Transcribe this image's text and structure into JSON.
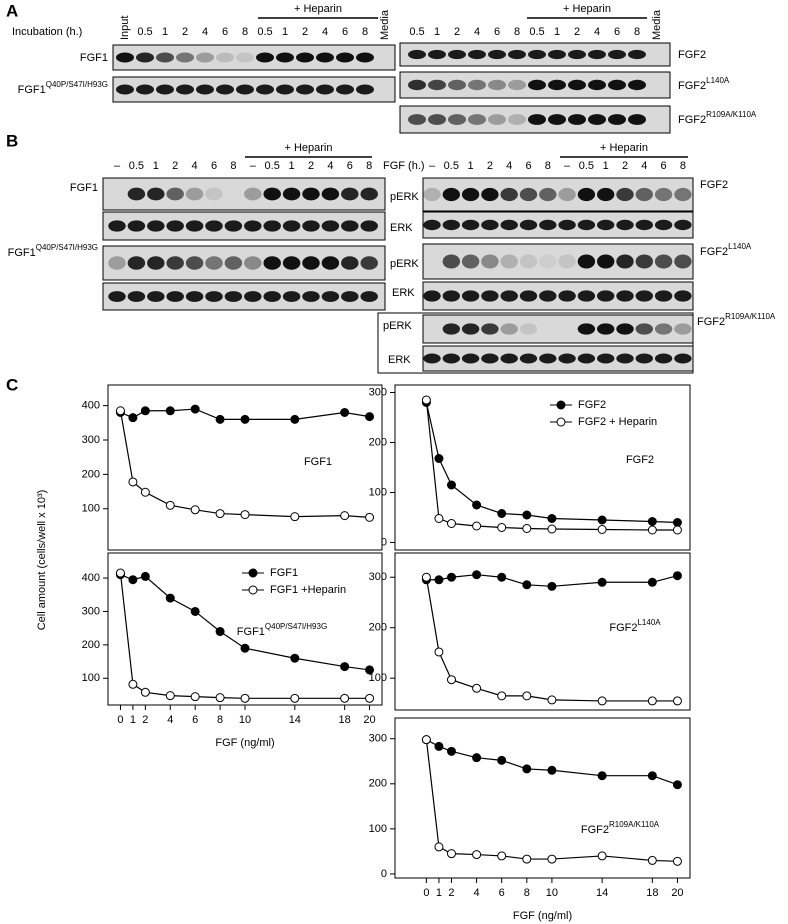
{
  "panel_a": {
    "letter": "A",
    "incubation_label": "Incubation (h.)",
    "left_lanes": [
      "Input",
      "0.5",
      "1",
      "2",
      "4",
      "6",
      "8",
      "0.5",
      "1",
      "2",
      "4",
      "6",
      "8",
      "Media"
    ],
    "left_heparin": "+ Heparin",
    "left_rows": [
      {
        "text": "FGF1"
      },
      {
        "text": "FGF1",
        "sup": "Q40P/S47I/H93G"
      }
    ],
    "right_lanes": [
      "0.5",
      "1",
      "2",
      "4",
      "6",
      "8",
      "0.5",
      "1",
      "2",
      "4",
      "6",
      "8",
      "Media"
    ],
    "right_heparin": "+ Heparin",
    "right_rows": [
      {
        "text": "FGF2"
      },
      {
        "text": "FGF2",
        "sup": "L140A"
      },
      {
        "text": "FGF2",
        "sup": "R109A/K110A"
      }
    ]
  },
  "panel_b": {
    "letter": "B",
    "left_lanes": [
      "–",
      "0.5",
      "1",
      "2",
      "4",
      "6",
      "8",
      "–",
      "0.5",
      "1",
      "2",
      "4",
      "6",
      "8"
    ],
    "left_heparin": "+ Heparin",
    "left_rows": [
      {
        "text": "FGF1"
      },
      {
        "text": "FGF1",
        "sup": "Q40P/S47I/H93G"
      }
    ],
    "time_label": "FGF (h.)",
    "right_lanes": [
      "–",
      "0.5",
      "1",
      "2",
      "4",
      "6",
      "8",
      "–",
      "0.5",
      "1",
      "2",
      "4",
      "6",
      "8"
    ],
    "right_heparin": "+ Heparin",
    "right_rows": [
      {
        "text": "FGF2"
      },
      {
        "text": "FGF2",
        "sup": "L140A"
      },
      {
        "text": "FGF2",
        "sup": "R109A/K110A"
      }
    ],
    "blot_labels": [
      "pERK",
      "ERK",
      "pERK",
      "ERK",
      "pERK",
      "ERK"
    ]
  },
  "panel_c": {
    "letter": "C",
    "y_label": "Cell amount (cells/well x 10³)"
  },
  "chart_data": [
    {
      "type": "line",
      "annotation": {
        "text": "FGF1"
      },
      "x": [
        0,
        1,
        2,
        4,
        6,
        8,
        10,
        14,
        18,
        20
      ],
      "xlim": [
        -1,
        21
      ],
      "ylim": [
        -20,
        460
      ],
      "yticks": [
        100,
        200,
        300,
        400
      ],
      "series": [
        {
          "color": "#000000",
          "values": [
            380,
            365,
            385,
            385,
            390,
            360,
            360,
            360,
            380,
            368
          ]
        },
        {
          "color": "#ffffff",
          "values": [
            385,
            178,
            148,
            110,
            97,
            86,
            83,
            77,
            80,
            75
          ]
        }
      ]
    },
    {
      "type": "line",
      "annotation": {
        "text": "FGF2"
      },
      "x": [
        0,
        1,
        2,
        4,
        6,
        8,
        10,
        14,
        18,
        20
      ],
      "xlim": [
        -2.5,
        21
      ],
      "ylim": [
        -15,
        315
      ],
      "yticks": [
        0,
        100,
        200,
        300
      ],
      "legend": "upper right",
      "series": [
        {
          "name": "FGF2",
          "color": "#000000",
          "values": [
            280,
            168,
            115,
            75,
            58,
            55,
            48,
            45,
            42,
            40
          ]
        },
        {
          "name": "FGF2 + Heparin",
          "color": "#ffffff",
          "values": [
            285,
            48,
            38,
            33,
            30,
            28,
            27,
            26,
            25,
            25
          ]
        }
      ]
    },
    {
      "type": "line",
      "annotation": {
        "text": "FGF1",
        "sup": "Q40P/S47I/H93G"
      },
      "x": [
        0,
        1,
        2,
        4,
        6,
        8,
        10,
        14,
        18,
        20
      ],
      "xlim": [
        -1,
        21
      ],
      "ylim": [
        20,
        475
      ],
      "yticks": [
        100,
        200,
        300,
        400
      ],
      "xticks": [
        0,
        1,
        2,
        4,
        6,
        8,
        10,
        14,
        18,
        20
      ],
      "x_label": "FGF (ng/ml)",
      "legend": "upper right",
      "series": [
        {
          "name": "FGF1",
          "color": "#000000",
          "values": [
            410,
            395,
            405,
            340,
            300,
            240,
            190,
            160,
            135,
            125
          ]
        },
        {
          "name": "FGF1 +Heparin",
          "color": "#ffffff",
          "values": [
            415,
            82,
            58,
            48,
            45,
            42,
            40,
            40,
            40,
            40
          ]
        }
      ]
    },
    {
      "type": "line",
      "annotation": {
        "text": "FGF2",
        "sup": "L140A"
      },
      "x": [
        0,
        1,
        2,
        4,
        6,
        8,
        10,
        14,
        18,
        20
      ],
      "xlim": [
        -2.5,
        21
      ],
      "ylim": [
        37,
        348
      ],
      "yticks": [
        100,
        200,
        300
      ],
      "series": [
        {
          "color": "#000000",
          "values": [
            295,
            295,
            300,
            305,
            300,
            285,
            282,
            290,
            290,
            303
          ]
        },
        {
          "color": "#ffffff",
          "values": [
            300,
            152,
            97,
            80,
            65,
            65,
            57,
            55,
            55,
            55
          ]
        }
      ]
    },
    {
      "type": "line",
      "annotation": {
        "text": "FGF2",
        "sup": "R109A/K110A"
      },
      "x": [
        0,
        1,
        2,
        4,
        6,
        8,
        10,
        14,
        18,
        20
      ],
      "xlim": [
        -2.5,
        21
      ],
      "ylim": [
        -9,
        346
      ],
      "yticks": [
        0,
        100,
        200,
        300
      ],
      "xticks": [
        0,
        1,
        2,
        4,
        6,
        8,
        10,
        14,
        18,
        20
      ],
      "x_label": "FGF (ng/ml)",
      "series": [
        {
          "color": "#000000",
          "values": [
            298,
            283,
            272,
            258,
            252,
            233,
            230,
            218,
            218,
            198
          ]
        },
        {
          "color": "#ffffff",
          "values": [
            298,
            60,
            45,
            43,
            40,
            33,
            33,
            40,
            30,
            28
          ]
        }
      ]
    }
  ]
}
